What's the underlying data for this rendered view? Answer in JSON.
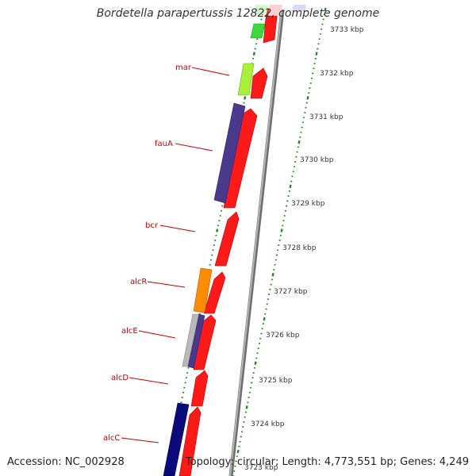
{
  "header": {
    "title": "Bordetella parapertussis 12822, complete genome"
  },
  "footer": {
    "accession": "Accession: NC_002928",
    "summary": "Topology: circular; Length: 4,773,551 bp; Genes: 4,249"
  },
  "colors": {
    "backbone": "#8a8a8a",
    "tick": "#1e8a1e",
    "label": "#cc0000",
    "gene_forward": "#ff1a1a",
    "gene_purple": "#4b3a8c",
    "gene_lime": "#a8f03a",
    "gene_green": "#3cd83c",
    "gene_orange": "#ff8c00",
    "gene_navy": "#0a0a7a",
    "gene_grey": "#b8b8b8"
  },
  "scale": {
    "markers": [
      "3733 kbp",
      "3732 kbp",
      "3731 kbp",
      "3730 kbp",
      "3729 kbp",
      "3728 kbp",
      "3727 kbp",
      "3726 kbp",
      "3725 kbp",
      "3724 kbp",
      "3723 kbp"
    ]
  },
  "gene_labels": [
    {
      "name": "mar"
    },
    {
      "name": "fauA"
    },
    {
      "name": "bcr"
    },
    {
      "name": "alcR"
    },
    {
      "name": "alcE"
    },
    {
      "name": "alcD"
    },
    {
      "name": "alcC"
    }
  ]
}
